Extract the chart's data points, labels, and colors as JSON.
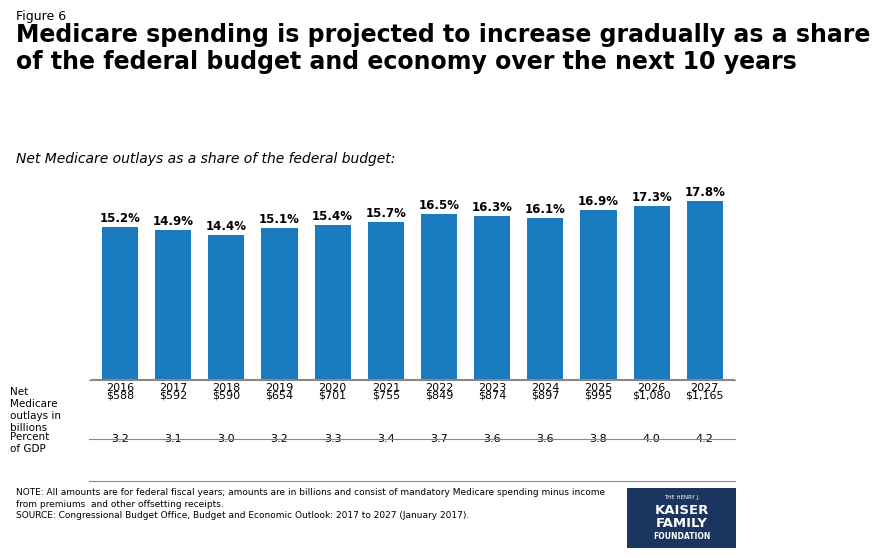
{
  "figure_label": "Figure 6",
  "title": "Medicare spending is projected to increase gradually as a share\nof the federal budget and economy over the next 10 years",
  "subtitle": "Net Medicare outlays as a share of the federal budget:",
  "years": [
    "2016",
    "2017",
    "2018",
    "2019",
    "2020",
    "2021",
    "2022",
    "2023",
    "2024",
    "2025",
    "2026",
    "2027"
  ],
  "values": [
    15.2,
    14.9,
    14.4,
    15.1,
    15.4,
    15.7,
    16.5,
    16.3,
    16.1,
    16.9,
    17.3,
    17.8
  ],
  "bar_color": "#1a7bbf",
  "outlays": [
    "$588",
    "$592",
    "$590",
    "$654",
    "$701",
    "$755",
    "$849",
    "$874",
    "$897",
    "$995",
    "$1,080",
    "$1,165"
  ],
  "gdp": [
    "3.2",
    "3.1",
    "3.0",
    "3.2",
    "3.3",
    "3.4",
    "3.7",
    "3.6",
    "3.6",
    "3.8",
    "4.0",
    "4.2"
  ],
  "left_label_line1": "Net",
  "left_label_line2": "Medicare",
  "left_label_line3": "outlays in",
  "left_label_line4": "billions",
  "left_gdp_line1": "Percent",
  "left_gdp_line2": "of GDP",
  "ylim": [
    0,
    21
  ],
  "bar_label_fontsize": 8.5,
  "tick_fontsize": 8,
  "table_fontsize": 8,
  "note_text": "NOTE: All amounts are for federal fiscal years; amounts are in billions and consist of mandatory Medicare spending minus income\nfrom premiums  and other offsetting receipts.\nSOURCE: Congressional Budget Office, Budget and Economic Outlook: 2017 to 2027 (January 2017).",
  "background_color": "#ffffff",
  "title_fontsize": 17,
  "figure_label_fontsize": 9,
  "subtitle_fontsize": 10,
  "logo_color": "#1a3560"
}
